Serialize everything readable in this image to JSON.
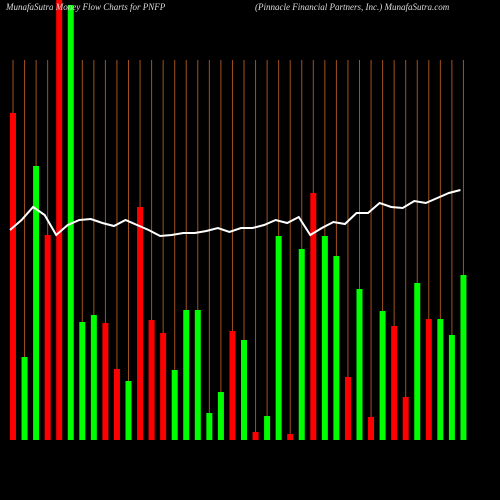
{
  "chart_data": {
    "type": "bar",
    "title": "MunafaSutra Money Flow Charts for PNFP",
    "subtitle": "(Pinnacle Financial Partners, Inc.) MunafaSutra.com",
    "values": [
      327,
      83,
      274,
      205,
      460,
      435,
      118,
      125,
      117,
      71,
      59,
      233,
      120,
      107,
      70,
      130,
      130,
      27,
      48,
      109,
      100,
      8,
      24,
      204,
      6,
      191,
      247,
      204,
      184,
      63,
      151,
      23,
      129,
      114,
      43,
      157,
      121,
      121,
      105,
      165
    ],
    "colors": [
      "#ff0000",
      "#00ff00",
      "#00ff00",
      "#ff0000",
      "#ff0000",
      "#00ff00",
      "#00ff00",
      "#00ff00",
      "#ff0000",
      "#ff0000",
      "#00ff00",
      "#ff0000",
      "#ff0000",
      "#ff0000",
      "#00ff00",
      "#00ff00",
      "#00ff00",
      "#00ff00",
      "#00ff00",
      "#ff0000",
      "#00ff00",
      "#ff0000",
      "#00ff00",
      "#00ff00",
      "#ff0000",
      "#00ff00",
      "#ff0000",
      "#00ff00",
      "#00ff00",
      "#ff0000",
      "#00ff00",
      "#ff0000",
      "#00ff00",
      "#ff0000",
      "#ff0000",
      "#00ff00",
      "#ff0000",
      "#00ff00",
      "#00ff00",
      "#00ff00"
    ],
    "line": {
      "color": "#ffffff",
      "values": [
        210,
        220,
        233,
        225,
        205,
        215,
        220,
        221,
        217,
        214,
        220,
        215,
        210,
        204,
        205,
        207,
        207,
        209,
        212,
        208,
        212,
        212,
        215,
        220,
        217,
        223,
        205,
        212,
        218,
        216,
        227,
        227,
        237,
        233,
        232,
        239,
        237,
        242,
        247,
        250
      ]
    },
    "ylim": [
      0,
      440
    ],
    "grid": true,
    "grid_color": "#a0521e"
  }
}
